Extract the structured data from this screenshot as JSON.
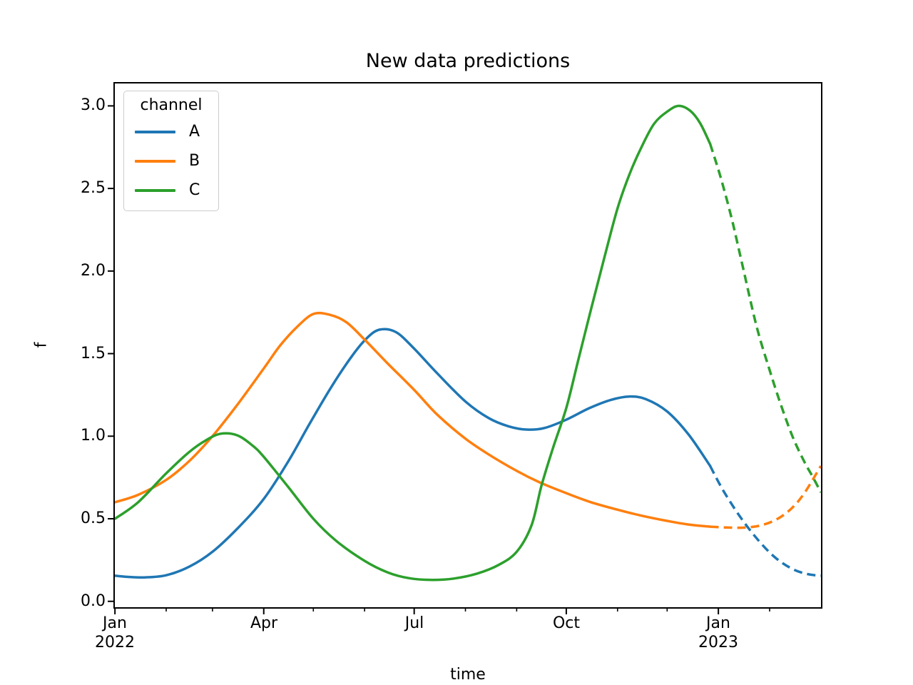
{
  "title": "New data predictions",
  "axes": {
    "xlabel": "time",
    "ylabel": "f",
    "yticklabels": [
      "3.0",
      "2.5",
      "2.0",
      "1.5",
      "1.0",
      "0.5",
      "0.0"
    ],
    "xticklabels": [
      "Jan\n2022",
      "Apr",
      "Jul",
      "Oct",
      "Jan\n2023"
    ]
  },
  "legend": {
    "title": "channel",
    "items": [
      {
        "label": "A"
      },
      {
        "label": "B"
      },
      {
        "label": "C"
      }
    ]
  },
  "chart_data": {
    "type": "line",
    "title": "New data predictions",
    "xlabel": "time",
    "ylabel": "f",
    "x_axis": {
      "unit": "days since 2022-01-01",
      "range": [
        -0.5,
        427.5
      ],
      "major_tick_days": [
        0,
        90,
        181,
        273,
        365
      ],
      "major_tick_labels": [
        "Jan 2022",
        "Apr",
        "Jul",
        "Oct",
        "Jan 2023"
      ],
      "minor_tick_days": [
        31,
        59,
        120,
        151,
        212,
        243,
        304,
        334,
        396
      ]
    },
    "y_axis": {
      "range": [
        -0.04,
        3.14
      ],
      "ticks": [
        0.0,
        0.5,
        1.0,
        1.5,
        2.0,
        2.5,
        3.0
      ]
    },
    "grid": false,
    "legend_position": "upper left",
    "solid_until_day": 360,
    "line_styles": {
      "observed": "solid",
      "prediction": "dashed"
    },
    "series": [
      {
        "name": "A",
        "color": "#1f77b4",
        "points": [
          [
            0,
            0.155
          ],
          [
            8,
            0.148
          ],
          [
            18,
            0.145
          ],
          [
            31,
            0.158
          ],
          [
            45,
            0.21
          ],
          [
            59,
            0.3
          ],
          [
            74,
            0.44
          ],
          [
            90,
            0.62
          ],
          [
            105,
            0.85
          ],
          [
            118,
            1.08
          ],
          [
            131,
            1.3
          ],
          [
            143,
            1.48
          ],
          [
            152,
            1.59
          ],
          [
            160,
            1.645
          ],
          [
            170,
            1.63
          ],
          [
            181,
            1.53
          ],
          [
            195,
            1.38
          ],
          [
            212,
            1.21
          ],
          [
            226,
            1.11
          ],
          [
            238,
            1.06
          ],
          [
            249,
            1.04
          ],
          [
            260,
            1.05
          ],
          [
            273,
            1.1
          ],
          [
            287,
            1.17
          ],
          [
            300,
            1.22
          ],
          [
            311,
            1.24
          ],
          [
            321,
            1.225
          ],
          [
            334,
            1.15
          ],
          [
            347,
            1.01
          ],
          [
            360,
            0.82
          ],
          [
            368,
            0.67
          ],
          [
            379,
            0.5
          ],
          [
            390,
            0.36
          ],
          [
            400,
            0.26
          ],
          [
            410,
            0.195
          ],
          [
            419,
            0.165
          ],
          [
            427,
            0.155
          ]
        ]
      },
      {
        "name": "B",
        "color": "#ff7f0e",
        "points": [
          [
            0,
            0.6
          ],
          [
            14,
            0.645
          ],
          [
            31,
            0.735
          ],
          [
            45,
            0.85
          ],
          [
            59,
            1.0
          ],
          [
            74,
            1.19
          ],
          [
            90,
            1.41
          ],
          [
            100,
            1.55
          ],
          [
            110,
            1.66
          ],
          [
            120,
            1.74
          ],
          [
            130,
            1.735
          ],
          [
            140,
            1.69
          ],
          [
            151,
            1.585
          ],
          [
            165,
            1.44
          ],
          [
            181,
            1.28
          ],
          [
            195,
            1.13
          ],
          [
            212,
            0.985
          ],
          [
            226,
            0.89
          ],
          [
            243,
            0.79
          ],
          [
            257,
            0.72
          ],
          [
            273,
            0.655
          ],
          [
            288,
            0.6
          ],
          [
            304,
            0.555
          ],
          [
            318,
            0.52
          ],
          [
            334,
            0.487
          ],
          [
            347,
            0.465
          ],
          [
            360,
            0.452
          ],
          [
            370,
            0.447
          ],
          [
            380,
            0.446
          ],
          [
            390,
            0.458
          ],
          [
            400,
            0.495
          ],
          [
            409,
            0.56
          ],
          [
            417,
            0.655
          ],
          [
            427,
            0.82
          ]
        ]
      },
      {
        "name": "C",
        "color": "#2ca02c",
        "points": [
          [
            0,
            0.5
          ],
          [
            14,
            0.6
          ],
          [
            31,
            0.775
          ],
          [
            45,
            0.905
          ],
          [
            55,
            0.975
          ],
          [
            64,
            1.015
          ],
          [
            74,
            1.005
          ],
          [
            83,
            0.945
          ],
          [
            90,
            0.875
          ],
          [
            105,
            0.69
          ],
          [
            120,
            0.5
          ],
          [
            134,
            0.365
          ],
          [
            151,
            0.245
          ],
          [
            165,
            0.175
          ],
          [
            178,
            0.14
          ],
          [
            192,
            0.13
          ],
          [
            205,
            0.138
          ],
          [
            219,
            0.168
          ],
          [
            232,
            0.22
          ],
          [
            243,
            0.3
          ],
          [
            252,
            0.46
          ],
          [
            258,
            0.7
          ],
          [
            265,
            0.93
          ],
          [
            273,
            1.17
          ],
          [
            280,
            1.45
          ],
          [
            288,
            1.77
          ],
          [
            296,
            2.08
          ],
          [
            304,
            2.38
          ],
          [
            311,
            2.58
          ],
          [
            318,
            2.74
          ],
          [
            326,
            2.89
          ],
          [
            334,
            2.965
          ],
          [
            341,
            3.0
          ],
          [
            348,
            2.97
          ],
          [
            354,
            2.895
          ],
          [
            360,
            2.77
          ],
          [
            366,
            2.58
          ],
          [
            373,
            2.32
          ],
          [
            379,
            2.06
          ],
          [
            388,
            1.67
          ],
          [
            396,
            1.4
          ],
          [
            403,
            1.185
          ],
          [
            410,
            0.995
          ],
          [
            417,
            0.845
          ],
          [
            422,
            0.755
          ],
          [
            427,
            0.66
          ]
        ]
      }
    ]
  }
}
